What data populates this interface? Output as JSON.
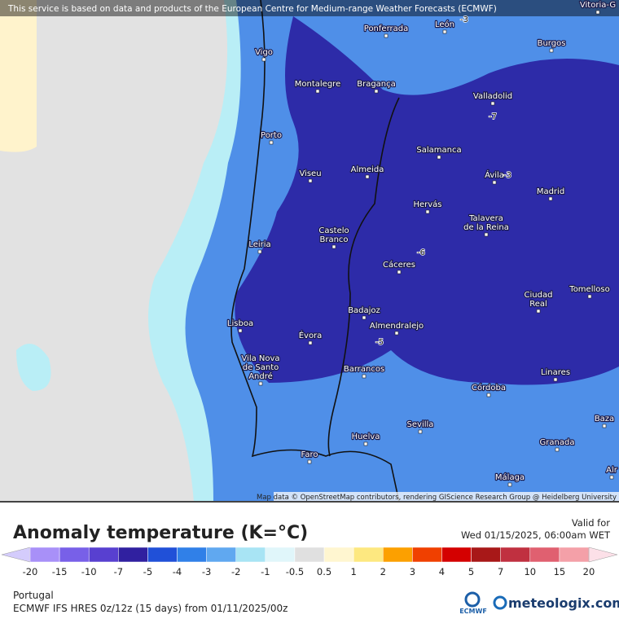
{
  "banner": "This service is based on data and products of the European Centre for Medium-range Weather Forecasts (ECMWF)",
  "map": {
    "cities": [
      [
        "Ponferrada"
      ],
      [
        "León"
      ],
      [
        "Burgos"
      ],
      [
        "Vigo"
      ],
      [
        "Montalegre"
      ],
      [
        "Bragança"
      ],
      [
        "Valladolid"
      ],
      [
        "Porto"
      ],
      [
        "Salamanca"
      ],
      [
        "Viseu"
      ],
      [
        "Almeida"
      ],
      [
        "Ávila"
      ],
      [
        "Madrid"
      ],
      [
        "Hervás"
      ],
      [
        "Talavera",
        "de la Reina"
      ],
      [
        "Castelo",
        "Branco"
      ],
      [
        "Leiria"
      ],
      [
        "Cáceres"
      ],
      [
        "Ciudad",
        "Real"
      ],
      [
        "Tomelloso"
      ],
      [
        "Badajoz"
      ],
      [
        "Lisboa"
      ],
      [
        "Almendralejo"
      ],
      [
        "Évora"
      ],
      [
        "Vila Nova",
        "de Santo",
        "André"
      ],
      [
        "Barrancos"
      ],
      [
        "Linares"
      ],
      [
        "Córdoba"
      ],
      [
        "Sevilla"
      ],
      [
        "Baza"
      ],
      [
        "Huelva"
      ],
      [
        "Granada"
      ],
      [
        "Faro"
      ],
      [
        "Málaga"
      ],
      [
        "Vitoria-G"
      ],
      [
        "Alr"
      ]
    ],
    "contour_labels": [
      -3,
      -7,
      -3,
      -6,
      -5
    ],
    "attribution": "Map data © OpenStreetMap contributors, rendering GIScience Research Group @ Heidelberg University"
  },
  "legend": {
    "title": "Anomaly temperature (K=°C)",
    "valid_label": "Valid for",
    "valid_time": "Wed 01/15/2025, 06:00am WET",
    "ticks": [
      -20,
      -15,
      -10,
      -7,
      -5,
      -4,
      -3,
      -2,
      -1,
      -0.5,
      0.5,
      1,
      2,
      3,
      4,
      5,
      7,
      10,
      15,
      20
    ],
    "colors": [
      "#d4ccfc",
      "#a890f8",
      "#7860e8",
      "#5840d0",
      "#3020a0",
      "#2050d8",
      "#3080e8",
      "#60a8f0",
      "#a8e4f4",
      "#e0f6fa",
      "#e0e0e0",
      "#fff6d0",
      "#fde880",
      "#fca000",
      "#f04000",
      "#d40000",
      "#a81818",
      "#c03040",
      "#e06070",
      "#f4a0a8",
      "#fce0e8"
    ]
  },
  "footer": {
    "region": "Portugal",
    "model": "ECMWF IFS HRES 0z/12z (15 days) from 01/11/2025/00z",
    "ecmwf": "ECMWF",
    "brand": "meteologix.com"
  }
}
